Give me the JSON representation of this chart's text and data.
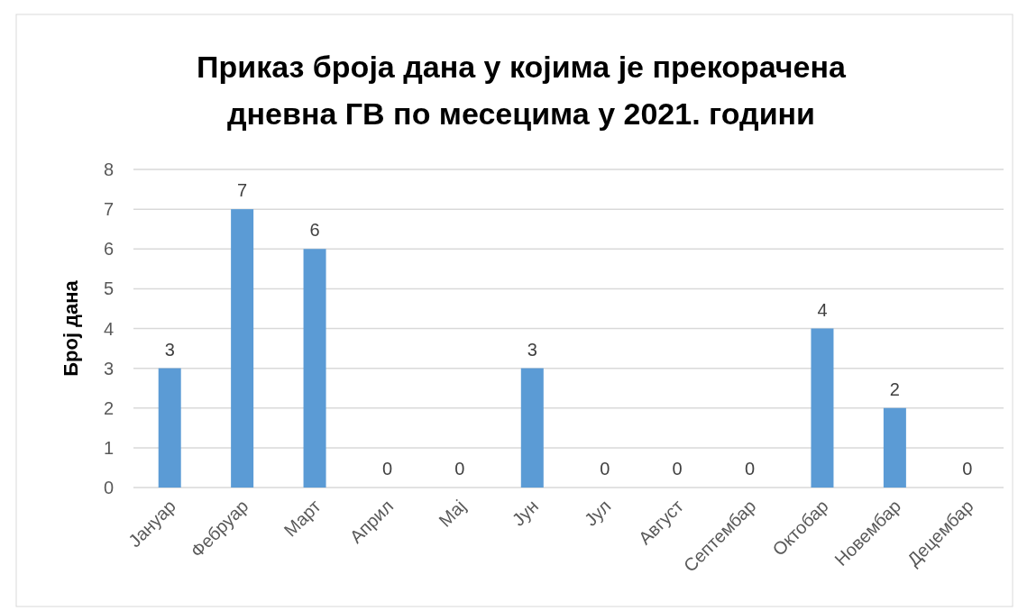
{
  "chart_data": {
    "type": "bar",
    "title": "Приказ броја дана у којима је прекорачена дневна ГВ по месецима у 2021. години",
    "ylabel": "Број дана",
    "categories": [
      "Јануар",
      "Фебруар",
      "Март",
      "Април",
      "Мај",
      "Јун",
      "Јул",
      "Август",
      "Септембар",
      "Октобар",
      "Новембар",
      "Децембар"
    ],
    "values": [
      3,
      7,
      6,
      0,
      0,
      3,
      0,
      0,
      0,
      4,
      2,
      0
    ],
    "color": "#5b9bd5",
    "ylim": [
      0,
      8
    ],
    "yticks": [
      0,
      1,
      2,
      3,
      4,
      5,
      6,
      7,
      8
    ],
    "grid": "y",
    "data_labels": true
  }
}
